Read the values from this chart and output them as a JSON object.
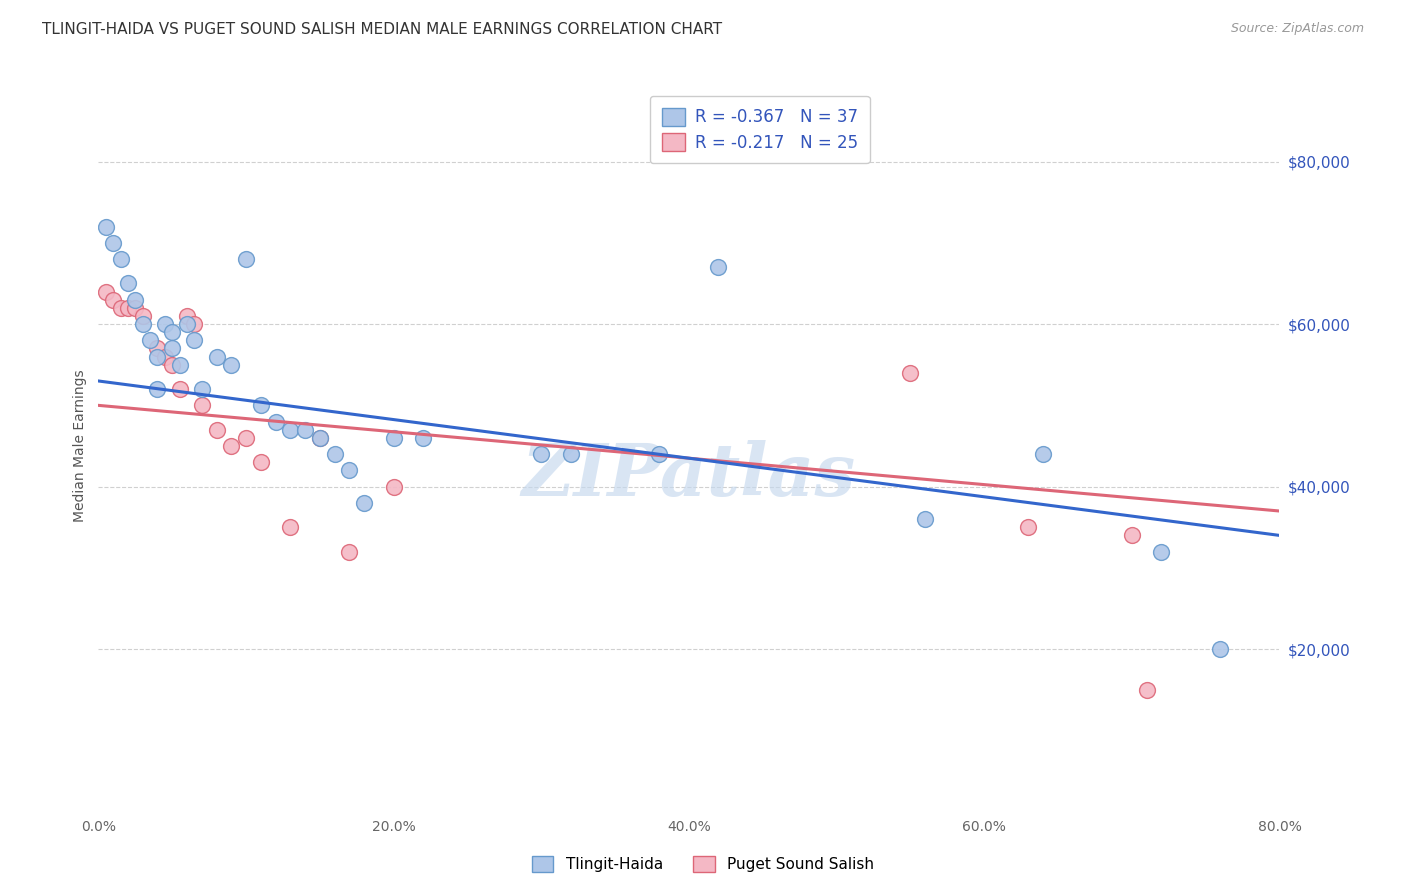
{
  "title": "TLINGIT-HAIDA VS PUGET SOUND SALISH MEDIAN MALE EARNINGS CORRELATION CHART",
  "source": "Source: ZipAtlas.com",
  "ylabel": "Median Male Earnings",
  "x_min": 0.0,
  "x_max": 0.8,
  "y_min": 0,
  "y_max": 90000,
  "y_ticks": [
    20000,
    40000,
    60000,
    80000
  ],
  "y_tick_labels": [
    "$20,000",
    "$40,000",
    "$60,000",
    "$80,000"
  ],
  "x_tick_labels": [
    "0.0%",
    "",
    "20.0%",
    "",
    "40.0%",
    "",
    "60.0%",
    "",
    "80.0%"
  ],
  "x_ticks": [
    0.0,
    0.1,
    0.2,
    0.3,
    0.4,
    0.5,
    0.6,
    0.7,
    0.8
  ],
  "background_color": "#ffffff",
  "grid_color": "#d0d0d0",
  "series": [
    {
      "name": "Tlingit-Haida",
      "R": -0.367,
      "N": 37,
      "color_fill": "#aec6e8",
      "color_edge": "#6699cc",
      "trendline_color": "#3366cc",
      "x": [
        0.005,
        0.01,
        0.015,
        0.02,
        0.025,
        0.03,
        0.035,
        0.04,
        0.04,
        0.045,
        0.05,
        0.05,
        0.055,
        0.06,
        0.065,
        0.07,
        0.08,
        0.09,
        0.1,
        0.11,
        0.12,
        0.13,
        0.14,
        0.15,
        0.16,
        0.17,
        0.18,
        0.2,
        0.22,
        0.3,
        0.32,
        0.38,
        0.42,
        0.56,
        0.64,
        0.72,
        0.76
      ],
      "y": [
        72000,
        70000,
        68000,
        65000,
        63000,
        60000,
        58000,
        56000,
        52000,
        60000,
        59000,
        57000,
        55000,
        60000,
        58000,
        52000,
        56000,
        55000,
        68000,
        50000,
        48000,
        47000,
        47000,
        46000,
        44000,
        42000,
        38000,
        46000,
        46000,
        44000,
        44000,
        44000,
        67000,
        36000,
        44000,
        32000,
        20000
      ],
      "trend_x": [
        0.0,
        0.8
      ],
      "trend_y": [
        53000,
        34000
      ]
    },
    {
      "name": "Puget Sound Salish",
      "R": -0.217,
      "N": 25,
      "color_fill": "#f4b8c5",
      "color_edge": "#dd6677",
      "trendline_color": "#dd6677",
      "x": [
        0.005,
        0.01,
        0.015,
        0.02,
        0.025,
        0.03,
        0.04,
        0.045,
        0.05,
        0.055,
        0.06,
        0.065,
        0.07,
        0.08,
        0.09,
        0.1,
        0.11,
        0.13,
        0.15,
        0.17,
        0.2,
        0.55,
        0.63,
        0.7,
        0.71
      ],
      "y": [
        64000,
        63000,
        62000,
        62000,
        62000,
        61000,
        57000,
        56000,
        55000,
        52000,
        61000,
        60000,
        50000,
        47000,
        45000,
        46000,
        43000,
        35000,
        46000,
        32000,
        40000,
        54000,
        35000,
        34000,
        15000
      ],
      "trend_x": [
        0.0,
        0.8
      ],
      "trend_y": [
        50000,
        37000
      ]
    }
  ],
  "watermark_text": "ZIPatlas",
  "watermark_color": "#c5d8ee",
  "title_fontsize": 11,
  "axis_label_fontsize": 10,
  "tick_fontsize": 10,
  "right_tick_color": "#3355bb",
  "scatter_size": 130
}
